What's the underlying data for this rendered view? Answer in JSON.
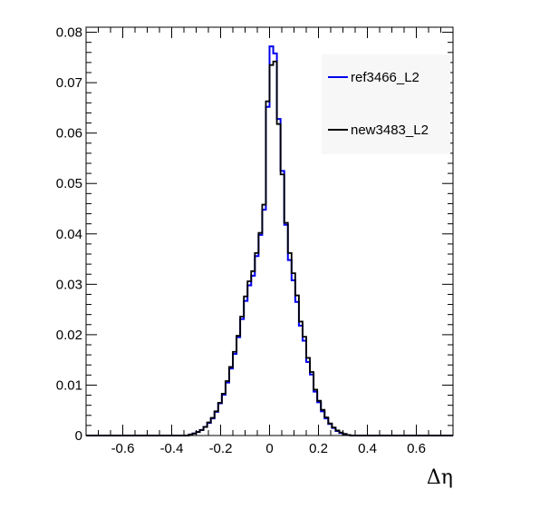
{
  "chart_data": {
    "type": "line",
    "style": "step-histogram",
    "title": "",
    "xlabel": "Δη",
    "ylabel": "",
    "xlim": [
      -0.75,
      0.75
    ],
    "ylim": [
      0,
      0.081
    ],
    "x_ticks": [
      -0.6,
      -0.4,
      -0.2,
      0,
      0.2,
      0.4,
      0.6
    ],
    "x_tick_labels": [
      "-0.6",
      "-0.4",
      "-0.2",
      "0",
      "0.2",
      "0.4",
      "0.6"
    ],
    "y_ticks": [
      0,
      0.01,
      0.02,
      0.03,
      0.04,
      0.05,
      0.06,
      0.07,
      0.08
    ],
    "y_tick_labels": [
      "0",
      "0.01",
      "0.02",
      "0.03",
      "0.04",
      "0.05",
      "0.06",
      "0.07",
      "0.08"
    ],
    "grid": false,
    "legend_position": "top-right",
    "bin_edges": [
      -0.75,
      -0.735,
      -0.72,
      -0.705,
      -0.69,
      -0.675,
      -0.66,
      -0.645,
      -0.63,
      -0.615,
      -0.6,
      -0.585,
      -0.57,
      -0.555,
      -0.54,
      -0.525,
      -0.51,
      -0.495,
      -0.48,
      -0.465,
      -0.45,
      -0.435,
      -0.42,
      -0.405,
      -0.39,
      -0.375,
      -0.36,
      -0.345,
      -0.33,
      -0.315,
      -0.3,
      -0.285,
      -0.27,
      -0.255,
      -0.24,
      -0.225,
      -0.21,
      -0.195,
      -0.18,
      -0.165,
      -0.15,
      -0.135,
      -0.12,
      -0.105,
      -0.09,
      -0.075,
      -0.06,
      -0.045,
      -0.03,
      -0.015,
      0,
      0.015,
      0.03,
      0.045,
      0.06,
      0.075,
      0.09,
      0.105,
      0.12,
      0.135,
      0.15,
      0.165,
      0.18,
      0.195,
      0.21,
      0.225,
      0.24,
      0.255,
      0.27,
      0.285,
      0.3,
      0.315,
      0.33,
      0.345,
      0.36,
      0.375,
      0.39,
      0.405,
      0.42,
      0.435,
      0.45,
      0.465,
      0.48,
      0.495,
      0.51,
      0.525,
      0.54,
      0.555,
      0.57,
      0.585,
      0.6,
      0.615,
      0.63,
      0.645,
      0.66,
      0.675,
      0.69,
      0.705,
      0.72,
      0.735,
      0.75
    ],
    "series": [
      {
        "name": "ref3466_L2",
        "color": "#0000ee",
        "values": [
          0,
          0,
          0,
          0,
          0,
          0,
          0,
          0,
          0,
          0,
          0,
          0,
          0,
          0,
          0,
          0,
          0,
          0,
          0,
          0,
          0,
          0,
          0,
          0,
          0,
          0,
          0,
          0,
          0.0002,
          0.0004,
          0.0007,
          0.0011,
          0.0017,
          0.0025,
          0.0034,
          0.0047,
          0.0064,
          0.0081,
          0.0105,
          0.0133,
          0.0162,
          0.0195,
          0.0231,
          0.0267,
          0.0298,
          0.0317,
          0.0356,
          0.0398,
          0.0448,
          0.0652,
          0.0772,
          0.0758,
          0.0628,
          0.0525,
          0.0418,
          0.0348,
          0.0308,
          0.0265,
          0.0218,
          0.0188,
          0.0146,
          0.0121,
          0.0087,
          0.0066,
          0.0048,
          0.0034,
          0.0023,
          0.0015,
          0.0009,
          0.0005,
          0.0003,
          0.0001,
          0,
          0,
          0,
          0,
          0,
          0,
          0,
          0,
          0,
          0,
          0,
          0,
          0,
          0,
          0,
          0,
          0,
          0,
          0,
          0,
          0,
          0,
          0,
          0,
          0,
          0,
          0,
          0
        ]
      },
      {
        "name": "new3483_L2",
        "color": "#000000",
        "values": [
          0,
          0,
          0,
          0,
          0,
          0,
          0,
          0,
          0,
          0,
          0,
          0,
          0,
          0,
          0,
          0,
          0,
          0,
          0,
          0,
          0,
          0,
          0,
          0,
          0,
          0,
          0,
          0,
          0.0002,
          0.0004,
          0.0007,
          0.0011,
          0.0017,
          0.0026,
          0.0035,
          0.0048,
          0.0065,
          0.0083,
          0.0108,
          0.0136,
          0.0166,
          0.0198,
          0.0236,
          0.0276,
          0.0306,
          0.0326,
          0.0362,
          0.0402,
          0.0458,
          0.0663,
          0.0735,
          0.0742,
          0.0618,
          0.0518,
          0.0422,
          0.0362,
          0.0322,
          0.0278,
          0.0226,
          0.0196,
          0.0154,
          0.0126,
          0.0091,
          0.0069,
          0.0051,
          0.0036,
          0.0024,
          0.0016,
          0.001,
          0.0006,
          0.0003,
          0.0001,
          0,
          0,
          0,
          0,
          0,
          0,
          0,
          0,
          0,
          0,
          0,
          0,
          0,
          0,
          0,
          0,
          0,
          0,
          0,
          0,
          0,
          0,
          0,
          0,
          0,
          0,
          0,
          0
        ]
      }
    ]
  }
}
